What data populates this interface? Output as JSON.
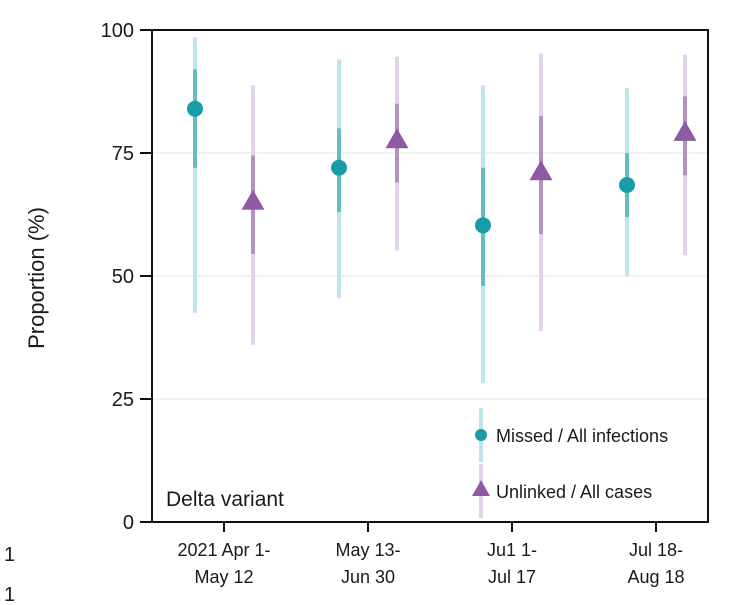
{
  "chart_data": {
    "type": "scatter",
    "ylabel": "Proportion (%)",
    "ylim": [
      0,
      100
    ],
    "yticks": [
      0,
      25,
      50,
      75,
      100
    ],
    "grid": "horizontal",
    "annotation": "Delta variant",
    "categories": [
      [
        "2021 Apr 1-",
        "May 12"
      ],
      [
        "May 13-",
        "Jun 30"
      ],
      [
        "Ju1 1-",
        "Jul 17"
      ],
      [
        "Jul 18-",
        "Aug 18"
      ]
    ],
    "side_labels": [
      "1",
      "1"
    ],
    "legend_position": "bottom-right",
    "series": [
      {
        "name": "Missed / All infections",
        "marker": "circle",
        "color": "#1a9ba8",
        "light_color": "#bfe5ea",
        "values": [
          84,
          72,
          60.3,
          68.5
        ],
        "ci95_low": [
          42.5,
          45.5,
          28.2,
          50
        ],
        "ci95_high": [
          98.5,
          94,
          88.8,
          88.2
        ],
        "ci50_low": [
          72,
          63,
          48,
          62
        ],
        "ci50_high": [
          92,
          80,
          72,
          75
        ]
      },
      {
        "name": "Unlinked / All cases",
        "marker": "triangle",
        "color": "#8d5ba3",
        "light_color": "#e2d2ea",
        "values": [
          65,
          77.5,
          71,
          79
        ],
        "ci95_low": [
          36,
          55.2,
          38.8,
          54.2
        ],
        "ci95_high": [
          88.8,
          94.6,
          95.2,
          95
        ],
        "ci50_low": [
          54.5,
          69,
          58.5,
          70.5
        ],
        "ci50_high": [
          74.5,
          85,
          82.5,
          86.5
        ]
      }
    ]
  }
}
